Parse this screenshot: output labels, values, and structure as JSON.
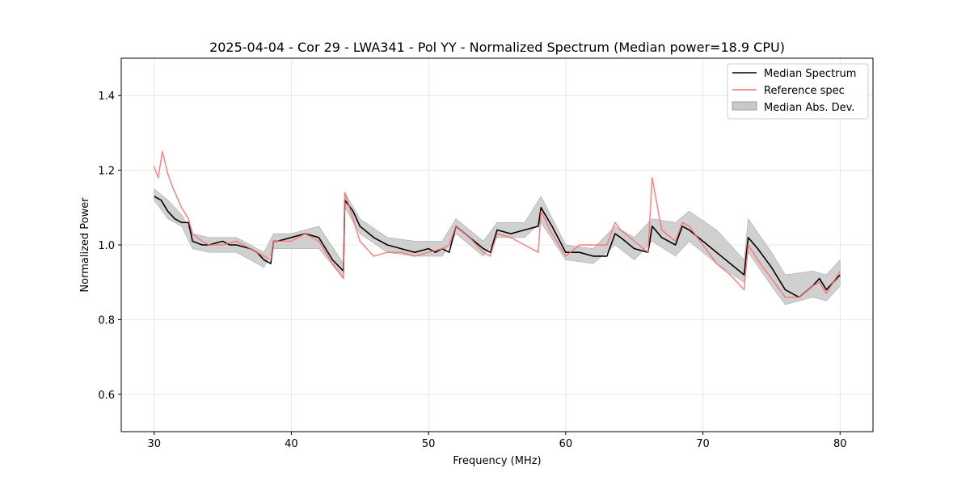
{
  "chart_data": {
    "type": "line",
    "title": "2025-04-04 - Cor 29 - LWA341 - Pol YY - Normalized Spectrum (Median power=18.9 CPU)",
    "xlabel": "Frequency (MHz)",
    "ylabel": "Normalized Power",
    "xlim": [
      27.6,
      82.4
    ],
    "ylim": [
      0.5,
      1.5
    ],
    "xticks": [
      30,
      40,
      50,
      60,
      70,
      80
    ],
    "yticks": [
      0.6,
      0.8,
      1.0,
      1.2,
      1.4
    ],
    "xtick_labels": [
      "30",
      "40",
      "50",
      "60",
      "70",
      "80"
    ],
    "ytick_labels": [
      "0.6",
      "0.8",
      "1.0",
      "1.2",
      "1.4"
    ],
    "grid": true,
    "legend_position": "top-right",
    "series": [
      {
        "name": "Median Spectrum",
        "color": "#000000",
        "kind": "line",
        "x": [
          30,
          30.5,
          31,
          31.5,
          32,
          32.5,
          32.8,
          33.5,
          34,
          35,
          35.5,
          36,
          37,
          37.5,
          38,
          38.5,
          38.7,
          39,
          40,
          41,
          42,
          43,
          43.8,
          43.9,
          44.5,
          45,
          46,
          47,
          48,
          49,
          50,
          50.5,
          51,
          51.5,
          52,
          53,
          54,
          54.5,
          55,
          56,
          57,
          58,
          58.2,
          59,
          60,
          61,
          62,
          63,
          63.6,
          64,
          65,
          66,
          66.3,
          67,
          68,
          68.5,
          69,
          70,
          71,
          72,
          73,
          73.3,
          74,
          75,
          76,
          77,
          78,
          78.5,
          79,
          80
        ],
        "values": [
          1.13,
          1.12,
          1.09,
          1.07,
          1.06,
          1.06,
          1.01,
          1.0,
          1.0,
          1.01,
          1.0,
          1.0,
          0.99,
          0.98,
          0.96,
          0.95,
          1.01,
          1.01,
          1.02,
          1.03,
          1.02,
          0.96,
          0.93,
          1.12,
          1.09,
          1.05,
          1.02,
          1.0,
          0.99,
          0.98,
          0.99,
          0.98,
          0.99,
          0.98,
          1.05,
          1.02,
          0.99,
          0.98,
          1.04,
          1.03,
          1.04,
          1.05,
          1.1,
          1.05,
          0.98,
          0.98,
          0.97,
          0.97,
          1.03,
          1.02,
          0.99,
          0.98,
          1.05,
          1.02,
          1.0,
          1.05,
          1.04,
          1.01,
          0.98,
          0.95,
          0.92,
          1.02,
          0.99,
          0.94,
          0.88,
          0.86,
          0.89,
          0.91,
          0.88,
          0.92
        ]
      },
      {
        "name": "Reference spec",
        "color": "#ff6b6b",
        "kind": "line",
        "x": [
          30,
          30.3,
          30.6,
          31,
          31.4,
          32,
          32.5,
          32.8,
          33.5,
          34,
          35,
          36,
          37,
          38,
          38.5,
          38.7,
          39,
          40,
          41,
          42,
          43,
          43.8,
          43.9,
          44.5,
          45,
          46,
          47,
          48,
          49,
          50,
          51,
          51.5,
          52,
          53,
          54,
          54.5,
          55,
          56,
          57,
          58,
          58.2,
          59,
          60,
          61,
          62,
          63,
          63.6,
          64,
          65,
          66,
          66.3,
          67,
          68,
          68.5,
          69,
          70,
          71,
          72,
          73,
          73.3,
          74,
          75,
          76,
          77,
          78,
          78.5,
          79,
          80
        ],
        "values": [
          1.21,
          1.18,
          1.25,
          1.19,
          1.15,
          1.1,
          1.07,
          1.03,
          1.01,
          1.0,
          1.0,
          1.01,
          0.99,
          0.97,
          0.96,
          1.01,
          1.01,
          1.01,
          1.03,
          1.01,
          0.95,
          0.91,
          1.14,
          1.07,
          1.01,
          0.97,
          0.98,
          0.98,
          0.97,
          0.98,
          0.99,
          1.0,
          1.05,
          1.02,
          0.98,
          0.97,
          1.03,
          1.02,
          1.0,
          0.98,
          1.09,
          1.03,
          0.97,
          1.0,
          1.0,
          1.0,
          1.06,
          1.04,
          1.01,
          0.98,
          1.18,
          1.04,
          1.01,
          1.06,
          1.05,
          1.0,
          0.95,
          0.92,
          0.88,
          1.0,
          0.96,
          0.91,
          0.86,
          0.86,
          0.89,
          0.9,
          0.87,
          0.93
        ]
      },
      {
        "name": "Median Abs. Dev.",
        "color": "#c8c8c8",
        "kind": "band",
        "x": [
          30,
          31,
          32,
          32.8,
          34,
          36,
          38,
          38.7,
          40,
          42,
          43.8,
          43.9,
          45,
          47,
          49,
          51,
          52,
          54,
          55,
          57,
          58.2,
          60,
          62,
          63.6,
          65,
          66.3,
          68,
          69,
          71,
          73,
          73.3,
          75,
          76,
          78,
          79,
          80
        ],
        "lower": [
          1.12,
          1.07,
          1.05,
          0.99,
          0.98,
          0.98,
          0.94,
          0.99,
          0.99,
          0.99,
          0.91,
          1.1,
          1.03,
          0.98,
          0.97,
          0.97,
          1.03,
          0.97,
          1.02,
          1.02,
          1.06,
          0.96,
          0.95,
          1.0,
          0.96,
          1.01,
          0.97,
          1.01,
          0.95,
          0.9,
          0.98,
          0.89,
          0.84,
          0.86,
          0.85,
          0.89
        ],
        "upper": [
          1.15,
          1.12,
          1.08,
          1.03,
          1.02,
          1.02,
          0.98,
          1.03,
          1.03,
          1.05,
          0.95,
          1.14,
          1.07,
          1.02,
          1.01,
          1.01,
          1.07,
          1.01,
          1.06,
          1.06,
          1.13,
          1.0,
          0.99,
          1.05,
          1.02,
          1.07,
          1.06,
          1.09,
          1.04,
          0.96,
          1.07,
          0.98,
          0.92,
          0.93,
          0.92,
          0.96
        ]
      }
    ],
    "legend": [
      {
        "label": "Median Spectrum",
        "color": "#000000",
        "kind": "line"
      },
      {
        "label": "Reference spec",
        "color": "#ff6b6b",
        "kind": "line"
      },
      {
        "label": "Median Abs. Dev.",
        "color": "#c8c8c8",
        "kind": "patch"
      }
    ]
  }
}
